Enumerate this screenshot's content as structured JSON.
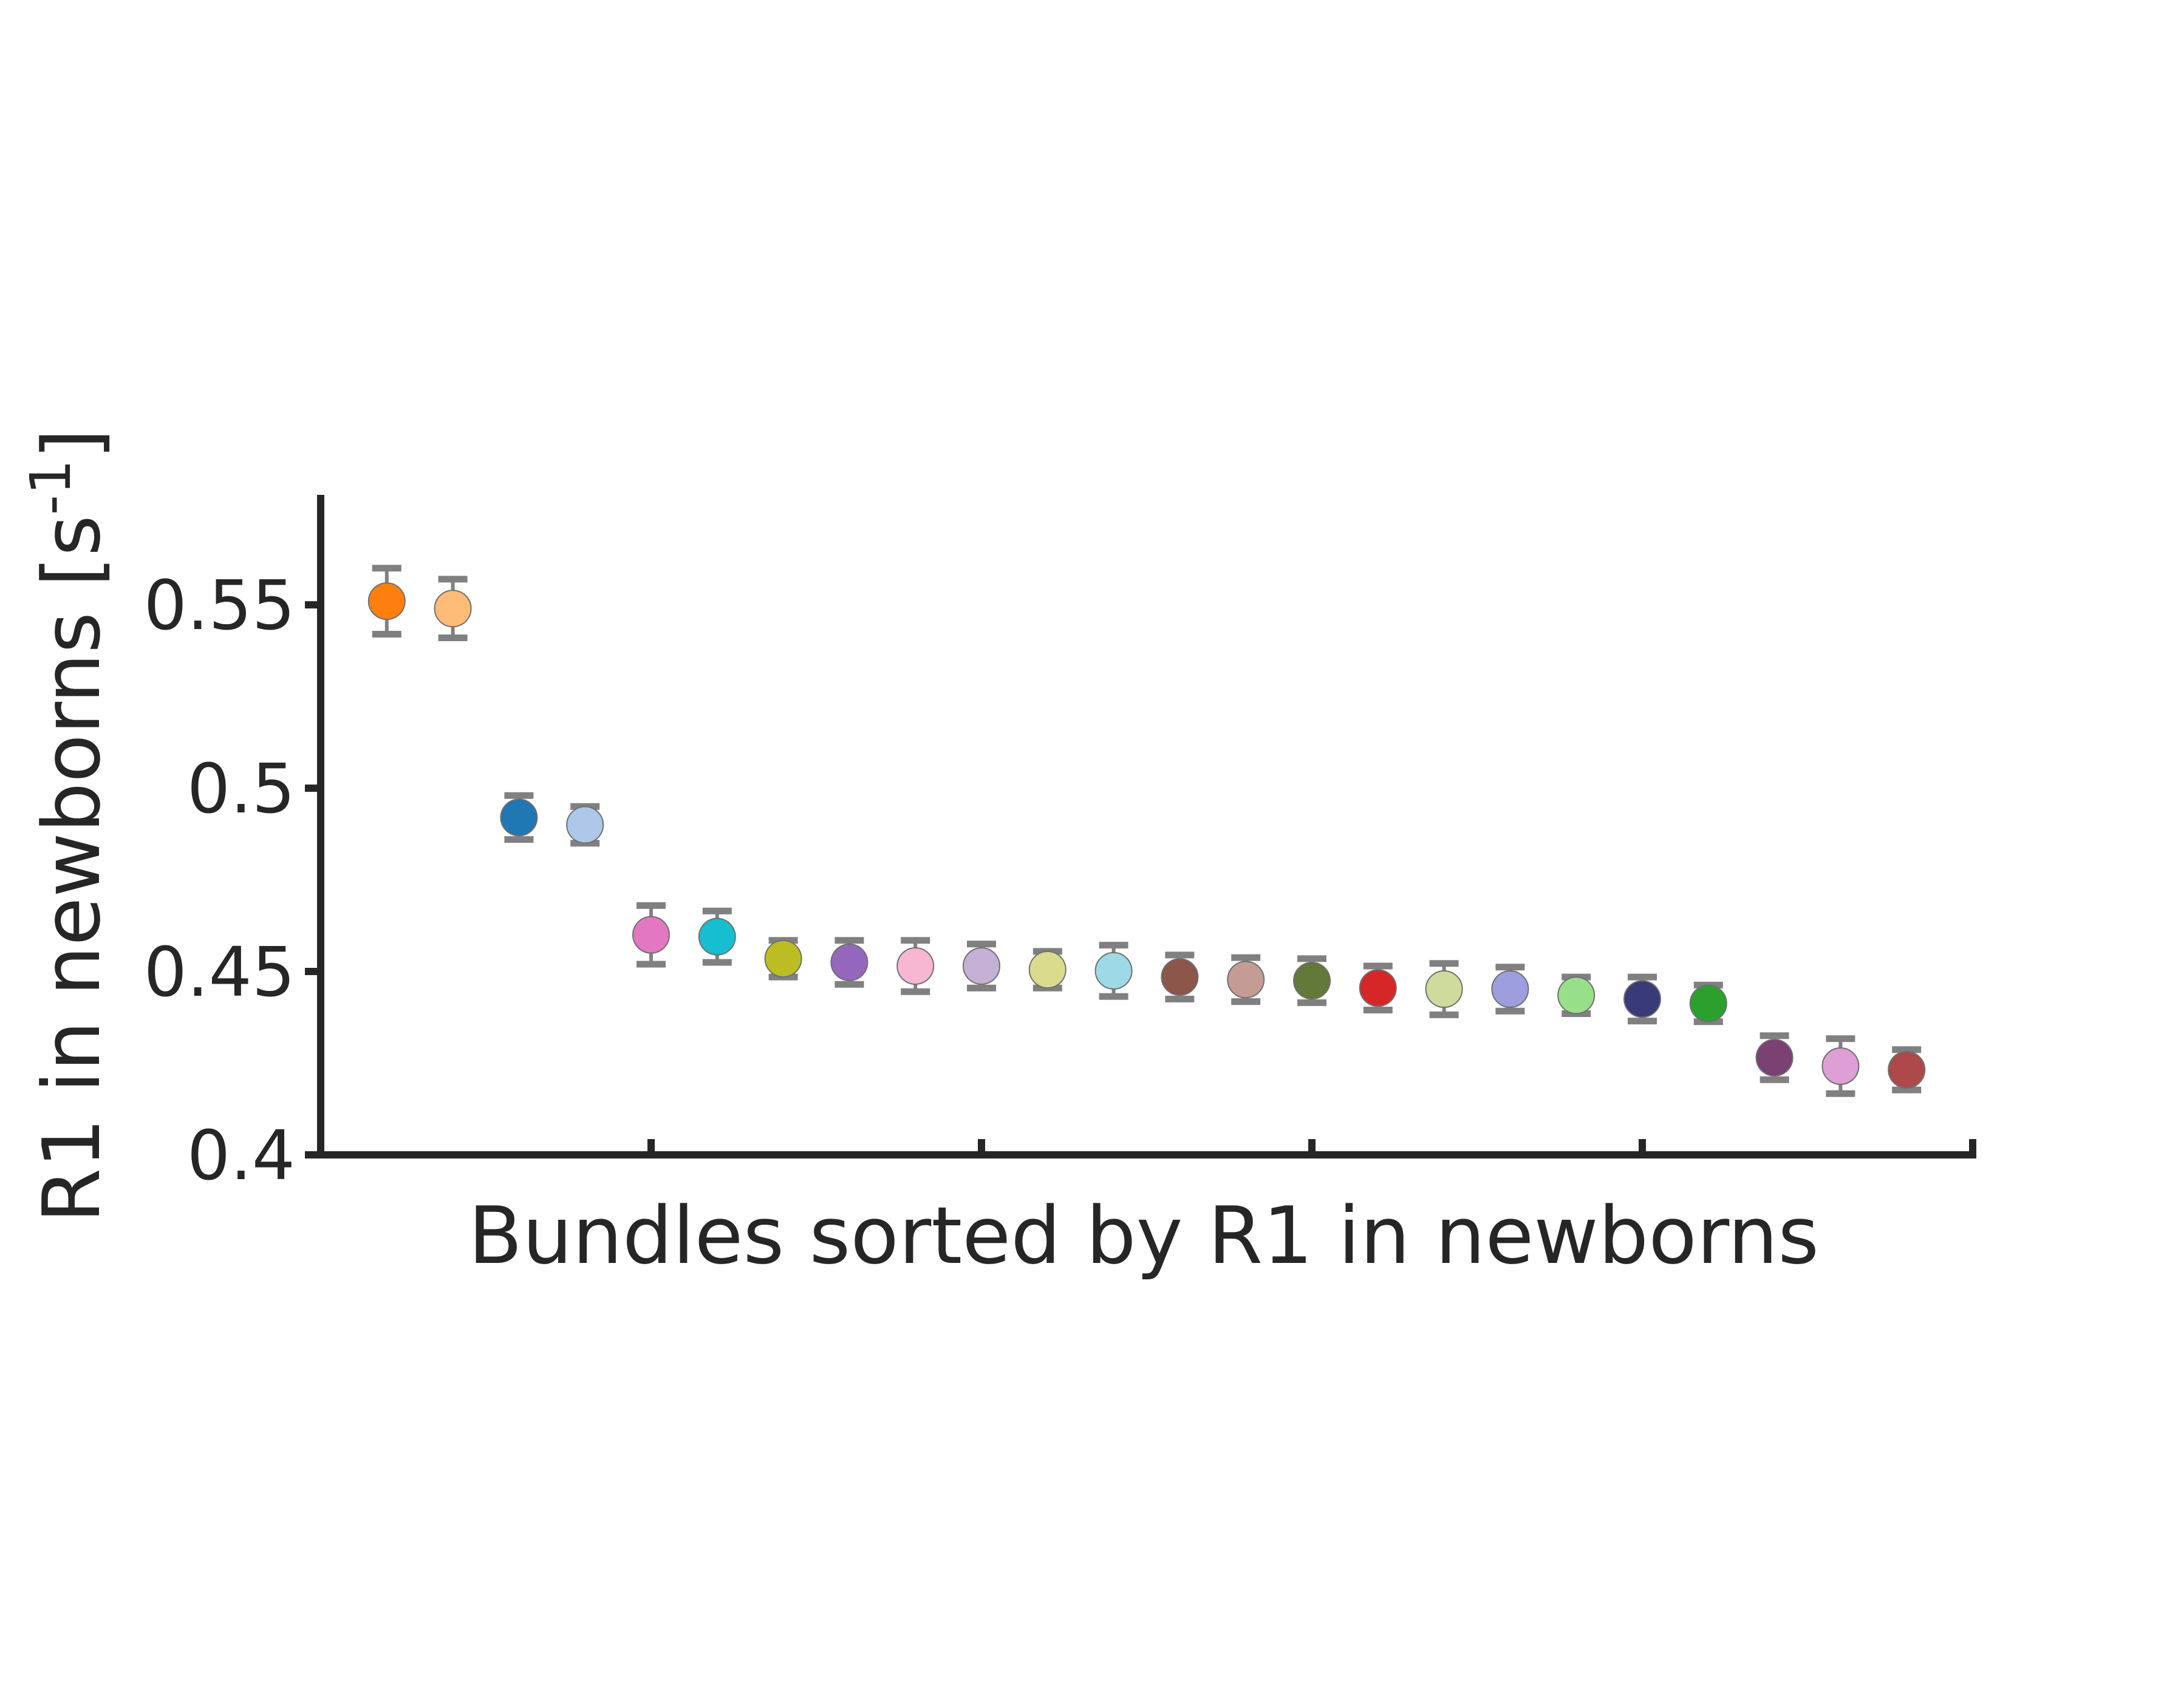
{
  "chart_data": {
    "type": "scatter",
    "title": "",
    "xlabel": "Bundles sorted by R1 in newborns",
    "ylabel": "R1 in newborns [s",
    "ylabel_superscript": "-1",
    "ylabel_suffix": "]",
    "ylim": [
      0.4,
      0.58
    ],
    "yticks": [
      "0.4",
      "0.45",
      "0.5",
      "0.55"
    ],
    "xlim": [
      0,
      25
    ],
    "xticks": [
      5,
      10,
      15,
      20,
      25
    ],
    "grid": false,
    "legend": "none",
    "error_bar_color": "#808080",
    "points": [
      {
        "x": 1,
        "y": 0.551,
        "err": 0.009,
        "color": "#ff7f0e"
      },
      {
        "x": 2,
        "y": 0.549,
        "err": 0.008,
        "color": "#ffbb78"
      },
      {
        "x": 3,
        "y": 0.492,
        "err": 0.006,
        "color": "#1f77b4"
      },
      {
        "x": 4,
        "y": 0.49,
        "err": 0.005,
        "color": "#aec7e8"
      },
      {
        "x": 5,
        "y": 0.46,
        "err": 0.008,
        "color": "#e377c2"
      },
      {
        "x": 6,
        "y": 0.4595,
        "err": 0.007,
        "color": "#17becf"
      },
      {
        "x": 7,
        "y": 0.4535,
        "err": 0.005,
        "color": "#bcbd22"
      },
      {
        "x": 8,
        "y": 0.4525,
        "err": 0.006,
        "color": "#9467bd"
      },
      {
        "x": 9,
        "y": 0.4515,
        "err": 0.007,
        "color": "#f7b6d2"
      },
      {
        "x": 10,
        "y": 0.4515,
        "err": 0.006,
        "color": "#c5b0d5"
      },
      {
        "x": 11,
        "y": 0.4505,
        "err": 0.005,
        "color": "#dbdb8d"
      },
      {
        "x": 12,
        "y": 0.4502,
        "err": 0.007,
        "color": "#9edae5"
      },
      {
        "x": 13,
        "y": 0.4485,
        "err": 0.006,
        "color": "#8c564b"
      },
      {
        "x": 14,
        "y": 0.4478,
        "err": 0.006,
        "color": "#c49c94"
      },
      {
        "x": 15,
        "y": 0.4475,
        "err": 0.006,
        "color": "#637939"
      },
      {
        "x": 16,
        "y": 0.4455,
        "err": 0.006,
        "color": "#d62728"
      },
      {
        "x": 17,
        "y": 0.4452,
        "err": 0.007,
        "color": "#cedb9c"
      },
      {
        "x": 18,
        "y": 0.4452,
        "err": 0.006,
        "color": "#9c9ede"
      },
      {
        "x": 19,
        "y": 0.4435,
        "err": 0.005,
        "color": "#98df8a"
      },
      {
        "x": 20,
        "y": 0.4425,
        "err": 0.006,
        "color": "#393b79"
      },
      {
        "x": 21,
        "y": 0.4413,
        "err": 0.005,
        "color": "#2ca02c"
      },
      {
        "x": 22,
        "y": 0.4265,
        "err": 0.006,
        "color": "#7b4173"
      },
      {
        "x": 23,
        "y": 0.4242,
        "err": 0.0075,
        "color": "#de9ed6"
      },
      {
        "x": 24,
        "y": 0.4232,
        "err": 0.0055,
        "color": "#ad494a"
      }
    ]
  }
}
